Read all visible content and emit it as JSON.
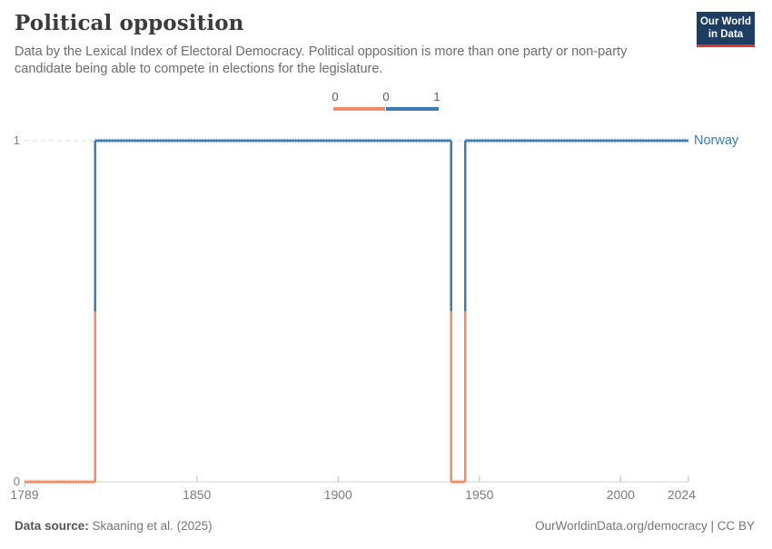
{
  "header": {
    "title": "Political opposition",
    "subtitle": "Data by the Lexical Index of Electoral Democracy. Political opposition is more than one party or non-party candidate being able to compete in elections for the legislature.",
    "logo": {
      "line1": "Our World",
      "line2": "in Data"
    }
  },
  "legend": {
    "labels": [
      "0",
      "0",
      "1"
    ]
  },
  "footer": {
    "source_label": "Data source:",
    "source_value": " Skaaning et al. (2025)",
    "right_text": "OurWorldinData.org/democracy | CC BY"
  },
  "colors": {
    "logo_bg": "#1d3d63",
    "logo_red": "#e0352b",
    "axis": "#cfcfcf",
    "gridline": "#dadada",
    "tick": "#b8b8b8"
  },
  "chart_data": {
    "type": "line",
    "step": true,
    "title": "Political opposition",
    "xlabel": "",
    "ylabel": "",
    "xlim": [
      1789,
      2024
    ],
    "ylim": [
      0,
      1
    ],
    "x_ticks": [
      1789,
      1850,
      1900,
      1950,
      2000,
      2024
    ],
    "y_ticks": [
      0,
      1
    ],
    "grid": "dashed gridline at y=1, solid axis at y=0",
    "legend_position": "top-center colorbar",
    "value_colors": {
      "0": "#ee8c69",
      "1": "#3b7cb3"
    },
    "value_colors_light": {
      "0": "#f8c4ac",
      "1": "#9fc1dc"
    },
    "series": [
      {
        "name": "Norway",
        "runs": [
          {
            "from": 1789,
            "to": 1814,
            "value": 0
          },
          {
            "from": 1814,
            "to": 1940,
            "value": 1
          },
          {
            "from": 1940,
            "to": 1945,
            "value": 0
          },
          {
            "from": 1945,
            "to": 2024,
            "value": 1
          }
        ]
      }
    ]
  }
}
